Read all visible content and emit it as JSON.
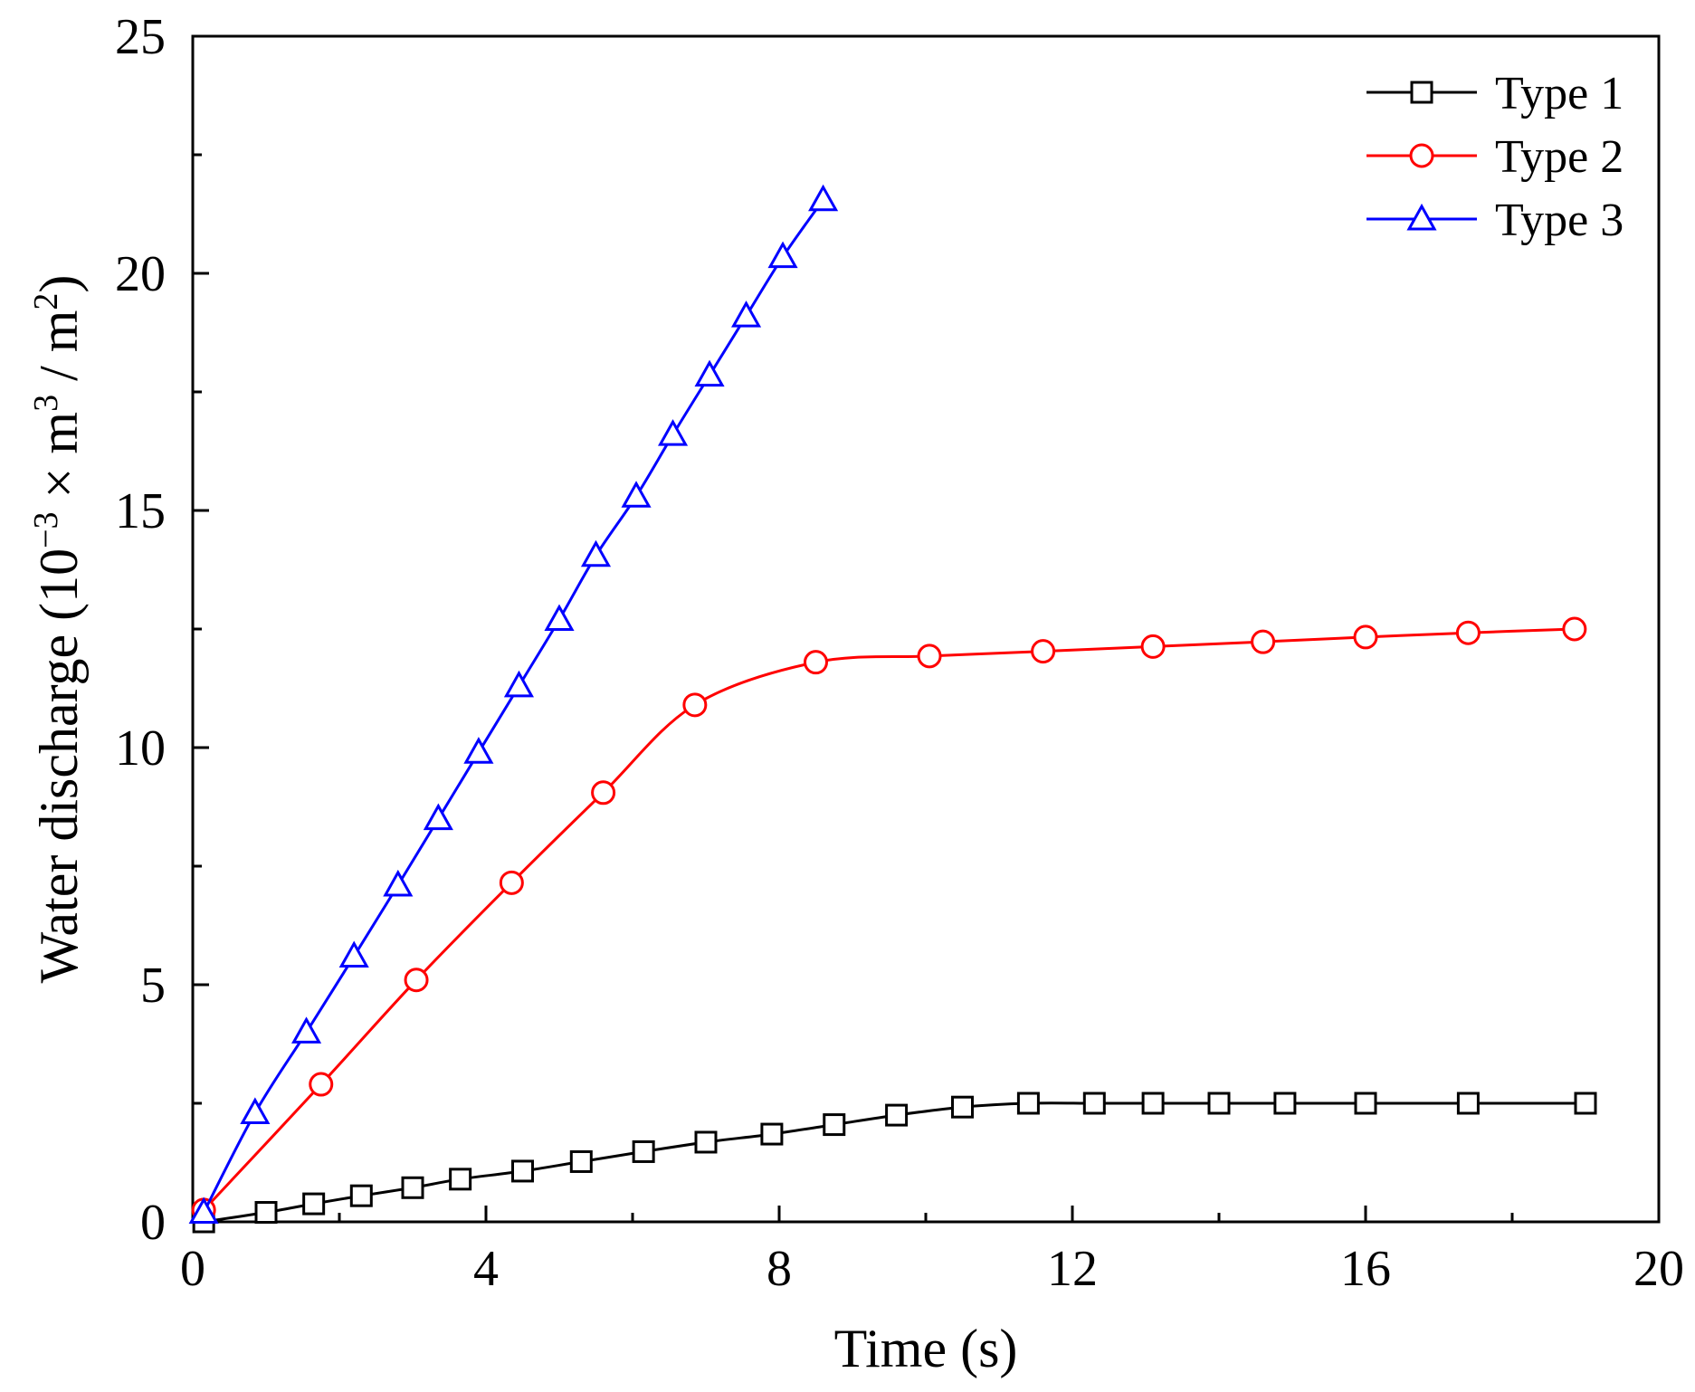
{
  "chart_data": {
    "type": "line",
    "title": "",
    "xlabel": "Time (s)",
    "ylabel": {
      "text1": "Water discharge (10",
      "sup1": "−3",
      "text2": " × m",
      "sup2": "3",
      "text3": " / m",
      "sup3": "2",
      "text4": ")"
    },
    "xlim": [
      0,
      20
    ],
    "ylim": [
      0,
      25
    ],
    "xticks": [
      0,
      4,
      8,
      12,
      16,
      20
    ],
    "yticks": [
      0,
      5,
      10,
      15,
      20,
      25
    ],
    "legend_position": "top-right",
    "series": [
      {
        "name": "Type 1",
        "color": "#000000",
        "marker": "square",
        "x": [
          0.15,
          1.0,
          1.65,
          2.3,
          3.0,
          3.65,
          4.5,
          5.3,
          6.15,
          7.0,
          7.9,
          8.75,
          9.6,
          10.5,
          11.4,
          12.3,
          13.1,
          14.0,
          14.9,
          16.0,
          17.4,
          19.0
        ],
        "y": [
          0.0,
          0.2,
          0.38,
          0.55,
          0.72,
          0.9,
          1.07,
          1.27,
          1.48,
          1.68,
          1.85,
          2.05,
          2.25,
          2.42,
          2.5,
          2.5,
          2.5,
          2.5,
          2.5,
          2.5,
          2.5,
          2.5
        ]
      },
      {
        "name": "Type 2",
        "color": "#ff0000",
        "marker": "circle",
        "x": [
          0.15,
          1.75,
          3.05,
          4.35,
          5.6,
          6.85,
          8.5,
          10.05,
          11.6,
          13.1,
          14.6,
          16.0,
          17.4,
          18.85
        ],
        "y": [
          0.25,
          2.9,
          5.1,
          7.15,
          9.05,
          10.9,
          11.8,
          11.93,
          12.03,
          12.13,
          12.23,
          12.33,
          12.42,
          12.5
        ]
      },
      {
        "name": "Type 3",
        "color": "#0000ff",
        "marker": "triangle",
        "x": [
          0.15,
          0.85,
          1.55,
          2.2,
          2.8,
          3.35,
          3.9,
          4.45,
          5.0,
          5.5,
          6.05,
          6.55,
          7.05,
          7.55,
          8.05,
          8.6
        ],
        "y": [
          0.2,
          2.3,
          4.0,
          5.6,
          7.1,
          8.5,
          9.9,
          11.3,
          12.7,
          14.05,
          15.3,
          16.6,
          17.85,
          19.1,
          20.35,
          21.55
        ]
      }
    ]
  }
}
